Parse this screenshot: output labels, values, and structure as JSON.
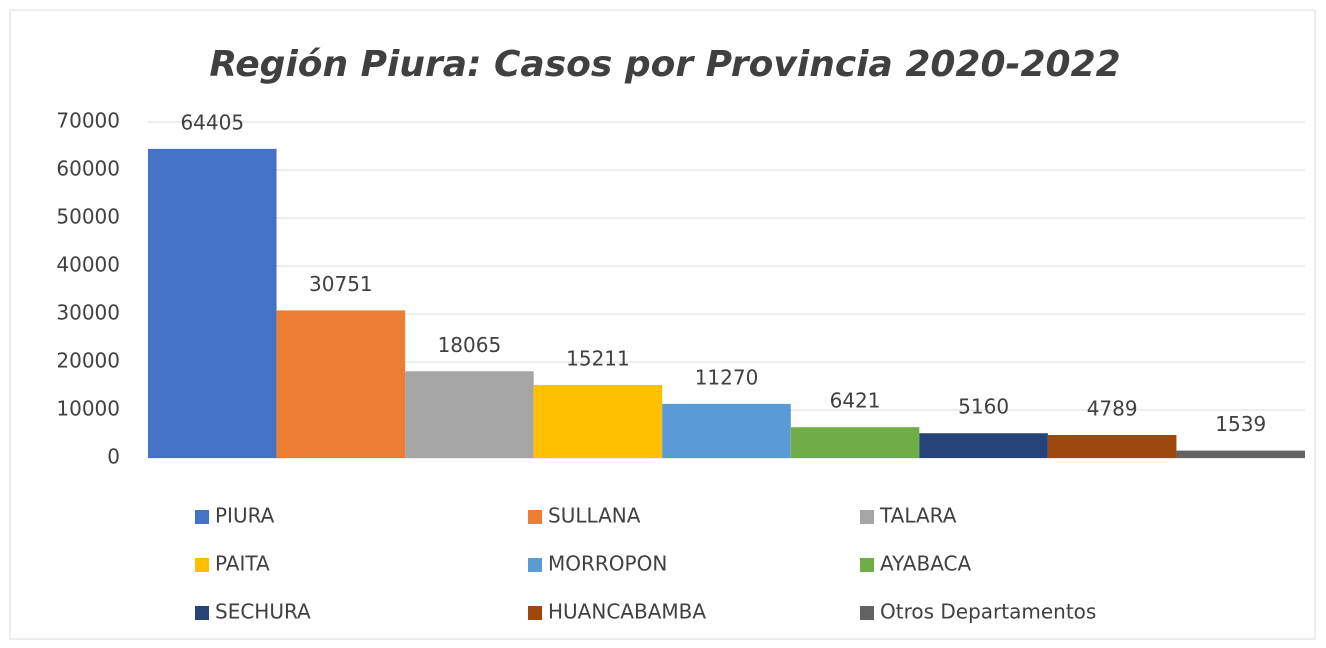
{
  "chart_data": {
    "type": "bar",
    "title": "Región Piura: Casos por Provincia 2020-2022",
    "series": [
      {
        "name": "PIURA",
        "color": "#4472c4",
        "values": [
          64405
        ]
      },
      {
        "name": "SULLANA",
        "color": "#ed7d31",
        "values": [
          30751
        ]
      },
      {
        "name": "TALARA",
        "color": "#a5a5a5",
        "values": [
          18065
        ]
      },
      {
        "name": "PAITA",
        "color": "#ffc000",
        "values": [
          15211
        ]
      },
      {
        "name": "MORROPON",
        "color": "#5b9bd5",
        "values": [
          11270
        ]
      },
      {
        "name": "AYABACA",
        "color": "#70ad47",
        "values": [
          6421
        ]
      },
      {
        "name": "SECHURA",
        "color": "#264478",
        "values": [
          5160
        ]
      },
      {
        "name": "HUANCABAMBA",
        "color": "#9e480e",
        "values": [
          4789
        ]
      },
      {
        "name": "Otros Departamentos",
        "color": "#636363",
        "values": [
          1539
        ]
      }
    ],
    "ylim": [
      0,
      70000
    ],
    "yticks": [
      0,
      10000,
      20000,
      30000,
      40000,
      50000,
      60000,
      70000
    ],
    "grid": true
  }
}
